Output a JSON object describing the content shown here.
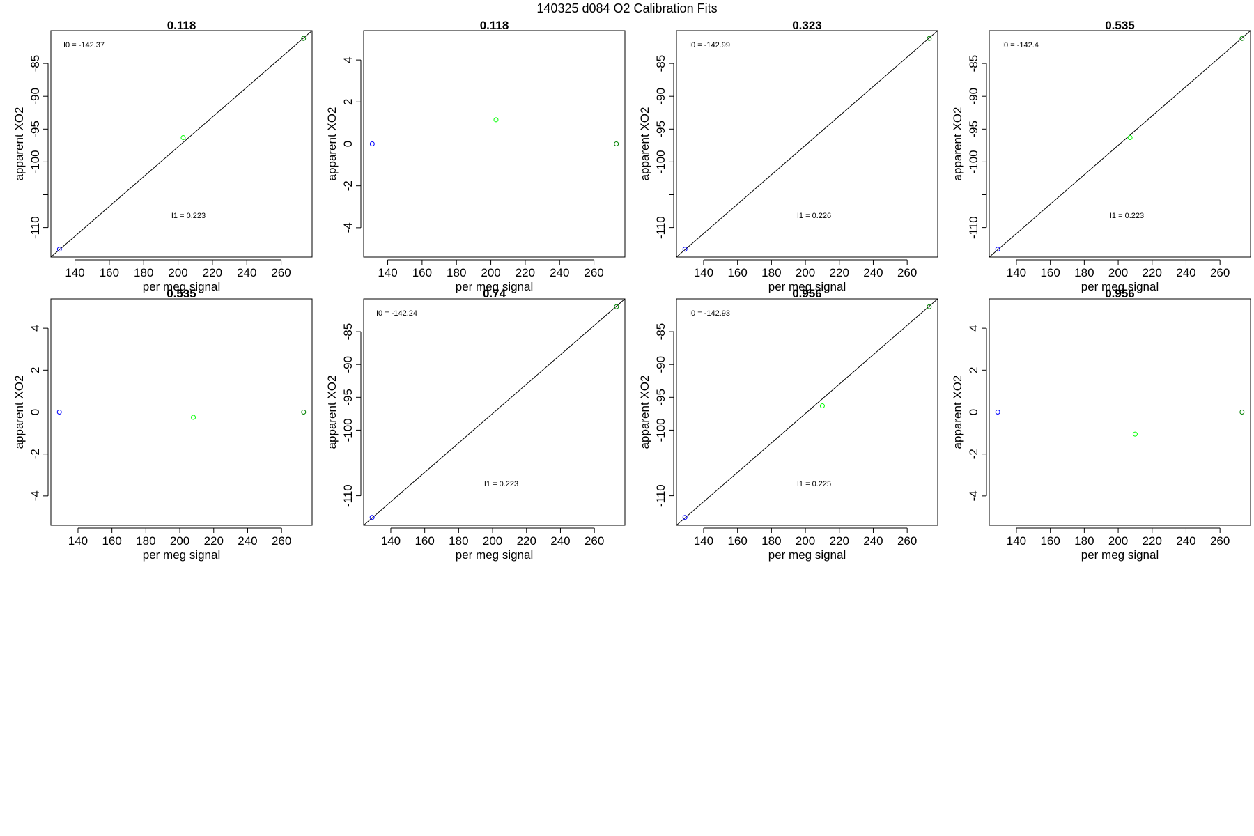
{
  "page": {
    "title": "140325   d084   O2 Calibration Fits",
    "colors": {
      "background": "#ffffff",
      "axis": "#000000",
      "fit_line": "#000000",
      "blue_point": "#0000ff",
      "green_point": "#00ff00",
      "dark_green_point": "#008000"
    }
  },
  "chart_data": [
    {
      "type": "scatter",
      "title": "0.118",
      "xlabel": "per meg signal",
      "ylabel": "apparent XO2",
      "xlim": [
        126,
        278
      ],
      "ylim": [
        -114.5,
        -80
      ],
      "xticks": [
        140,
        160,
        180,
        200,
        220,
        240,
        260
      ],
      "yticks": [
        -110,
        -105,
        -100,
        -95,
        -90,
        -85
      ],
      "ytick_labels": [
        "-110",
        "",
        "-100",
        "-95",
        "-90",
        "-85"
      ],
      "points": [
        {
          "x": 131,
          "y": -113.3,
          "color": "#0000ff"
        },
        {
          "x": 203,
          "y": -96.3,
          "color": "#00ff00"
        },
        {
          "x": 273,
          "y": -81.2,
          "color": "#008000"
        }
      ],
      "fit_line": {
        "from": [
          126,
          -114.5
        ],
        "to": [
          278,
          -80
        ]
      },
      "annotations": [
        {
          "text": "I0 =  -142.37",
          "pos": "top-left"
        },
        {
          "text": "I1 =  0.223",
          "pos": "bottom-center"
        }
      ]
    },
    {
      "type": "scatter",
      "title": "0.118",
      "xlabel": "per meg signal",
      "ylabel": "apparent XO2",
      "xlim": [
        126,
        278
      ],
      "ylim": [
        -5.4,
        5.4
      ],
      "xticks": [
        140,
        160,
        180,
        200,
        220,
        240,
        260
      ],
      "yticks": [
        -4,
        -2,
        0,
        2,
        4
      ],
      "ytick_labels": [
        "-4",
        "-2",
        "0",
        "2",
        "4"
      ],
      "points": [
        {
          "x": 131,
          "y": 0,
          "color": "#0000ff"
        },
        {
          "x": 203,
          "y": 1.15,
          "color": "#00ff00"
        },
        {
          "x": 273,
          "y": 0,
          "color": "#008000"
        }
      ],
      "fit_line": {
        "from": [
          126,
          0
        ],
        "to": [
          278,
          0
        ]
      },
      "annotations": []
    },
    {
      "type": "scatter",
      "title": "0.323",
      "xlabel": "per meg signal",
      "ylabel": "apparent XO2",
      "xlim": [
        124,
        278
      ],
      "ylim": [
        -114.5,
        -80
      ],
      "xticks": [
        140,
        160,
        180,
        200,
        220,
        240,
        260
      ],
      "yticks": [
        -110,
        -105,
        -100,
        -95,
        -90,
        -85
      ],
      "ytick_labels": [
        "-110",
        "",
        "-100",
        "-95",
        "-90",
        "-85"
      ],
      "points": [
        {
          "x": 129,
          "y": -113.3,
          "color": "#0000ff"
        },
        {
          "x": 273,
          "y": -81.2,
          "color": "#008000"
        }
      ],
      "fit_line": {
        "from": [
          124,
          -114.5
        ],
        "to": [
          278,
          -80
        ]
      },
      "annotations": [
        {
          "text": "I0 =  -142.99",
          "pos": "top-left"
        },
        {
          "text": "I1 =  0.226",
          "pos": "bottom-center"
        }
      ]
    },
    {
      "type": "scatter",
      "title": "0.535",
      "xlabel": "per meg signal",
      "ylabel": "apparent XO2",
      "xlim": [
        124,
        278
      ],
      "ylim": [
        -114.5,
        -80
      ],
      "xticks": [
        140,
        160,
        180,
        200,
        220,
        240,
        260
      ],
      "yticks": [
        -110,
        -105,
        -100,
        -95,
        -90,
        -85
      ],
      "ytick_labels": [
        "-110",
        "",
        "-100",
        "-95",
        "-90",
        "-85"
      ],
      "points": [
        {
          "x": 129,
          "y": -113.3,
          "color": "#0000ff"
        },
        {
          "x": 207,
          "y": -96.3,
          "color": "#00ff00"
        },
        {
          "x": 273,
          "y": -81.2,
          "color": "#008000"
        }
      ],
      "fit_line": {
        "from": [
          124,
          -114.5
        ],
        "to": [
          278,
          -80
        ]
      },
      "annotations": [
        {
          "text": "I0 =  -142.4",
          "pos": "top-left"
        },
        {
          "text": "I1 =  0.223",
          "pos": "bottom-center"
        }
      ]
    },
    {
      "type": "scatter",
      "title": "0.535",
      "xlabel": "per meg signal",
      "ylabel": "apparent XO2",
      "xlim": [
        124,
        278
      ],
      "ylim": [
        -5.4,
        5.4
      ],
      "xticks": [
        140,
        160,
        180,
        200,
        220,
        240,
        260
      ],
      "yticks": [
        -4,
        -2,
        0,
        2,
        4
      ],
      "ytick_labels": [
        "-4",
        "-2",
        "0",
        "2",
        "4"
      ],
      "points": [
        {
          "x": 129,
          "y": 0,
          "color": "#0000ff"
        },
        {
          "x": 208,
          "y": -0.25,
          "color": "#00ff00"
        },
        {
          "x": 273,
          "y": 0,
          "color": "#008000"
        }
      ],
      "fit_line": {
        "from": [
          124,
          0
        ],
        "to": [
          278,
          0
        ]
      },
      "annotations": []
    },
    {
      "type": "scatter",
      "title": "0.74",
      "xlabel": "per meg signal",
      "ylabel": "apparent XO2",
      "xlim": [
        124,
        278
      ],
      "ylim": [
        -114.5,
        -80
      ],
      "xticks": [
        140,
        160,
        180,
        200,
        220,
        240,
        260
      ],
      "yticks": [
        -110,
        -105,
        -100,
        -95,
        -90,
        -85
      ],
      "ytick_labels": [
        "-110",
        "",
        "-100",
        "-95",
        "-90",
        "-85"
      ],
      "points": [
        {
          "x": 129,
          "y": -113.3,
          "color": "#0000ff"
        },
        {
          "x": 273,
          "y": -81.2,
          "color": "#008000"
        }
      ],
      "fit_line": {
        "from": [
          124,
          -114.5
        ],
        "to": [
          278,
          -80
        ]
      },
      "annotations": [
        {
          "text": "I0 =  -142.24",
          "pos": "top-left"
        },
        {
          "text": "I1 =  0.223",
          "pos": "bottom-center"
        }
      ]
    },
    {
      "type": "scatter",
      "title": "0.956",
      "xlabel": "per meg signal",
      "ylabel": "apparent XO2",
      "xlim": [
        124,
        278
      ],
      "ylim": [
        -114.5,
        -80
      ],
      "xticks": [
        140,
        160,
        180,
        200,
        220,
        240,
        260
      ],
      "yticks": [
        -110,
        -105,
        -100,
        -95,
        -90,
        -85
      ],
      "ytick_labels": [
        "-110",
        "",
        "-100",
        "-95",
        "-90",
        "-85"
      ],
      "points": [
        {
          "x": 129,
          "y": -113.3,
          "color": "#0000ff"
        },
        {
          "x": 210,
          "y": -96.3,
          "color": "#00ff00"
        },
        {
          "x": 273,
          "y": -81.2,
          "color": "#008000"
        }
      ],
      "fit_line": {
        "from": [
          124,
          -114.5
        ],
        "to": [
          278,
          -80
        ]
      },
      "annotations": [
        {
          "text": "I0 =  -142.93",
          "pos": "top-left"
        },
        {
          "text": "I1 =  0.225",
          "pos": "bottom-center"
        }
      ]
    },
    {
      "type": "scatter",
      "title": "0.956",
      "xlabel": "per meg signal",
      "ylabel": "apparent XO2",
      "xlim": [
        124,
        278
      ],
      "ylim": [
        -5.4,
        5.4
      ],
      "xticks": [
        140,
        160,
        180,
        200,
        220,
        240,
        260
      ],
      "yticks": [
        -4,
        -2,
        0,
        2,
        4
      ],
      "ytick_labels": [
        "-4",
        "-2",
        "0",
        "2",
        "4"
      ],
      "points": [
        {
          "x": 129,
          "y": 0,
          "color": "#0000ff"
        },
        {
          "x": 210,
          "y": -1.05,
          "color": "#00ff00"
        },
        {
          "x": 273,
          "y": 0,
          "color": "#008000"
        }
      ],
      "fit_line": {
        "from": [
          124,
          0
        ],
        "to": [
          278,
          0
        ]
      },
      "annotations": []
    }
  ]
}
